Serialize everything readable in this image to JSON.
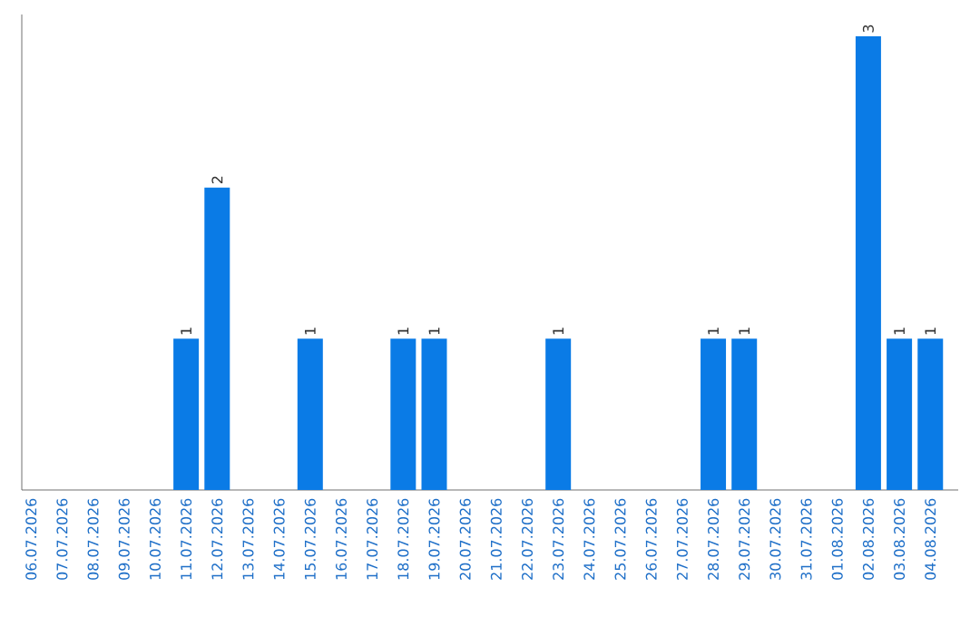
{
  "chart_data": {
    "type": "bar",
    "categories": [
      "06.07.2026",
      "07.07.2026",
      "08.07.2026",
      "09.07.2026",
      "10.07.2026",
      "11.07.2026",
      "12.07.2026",
      "13.07.2026",
      "14.07.2026",
      "15.07.2026",
      "16.07.2026",
      "17.07.2026",
      "18.07.2026",
      "19.07.2026",
      "20.07.2026",
      "21.07.2026",
      "22.07.2026",
      "23.07.2026",
      "24.07.2026",
      "25.07.2026",
      "26.07.2026",
      "27.07.2026",
      "28.07.2026",
      "29.07.2026",
      "30.07.2026",
      "31.07.2026",
      "01.08.2026",
      "02.08.2026",
      "03.08.2026",
      "04.08.2026"
    ],
    "values": [
      0,
      0,
      0,
      0,
      0,
      1,
      2,
      0,
      0,
      1,
      0,
      0,
      1,
      1,
      0,
      0,
      0,
      1,
      0,
      0,
      0,
      0,
      1,
      1,
      0,
      0,
      0,
      3,
      1,
      1
    ],
    "value_labels": [
      null,
      null,
      null,
      null,
      null,
      "1",
      "2",
      null,
      null,
      "1",
      null,
      null,
      "1",
      "1",
      null,
      null,
      null,
      "1",
      null,
      null,
      null,
      null,
      "1",
      "1",
      null,
      null,
      null,
      "3",
      "1",
      "1"
    ],
    "color": "#0a7be6",
    "tick_labels": "x",
    "grid": false
  }
}
